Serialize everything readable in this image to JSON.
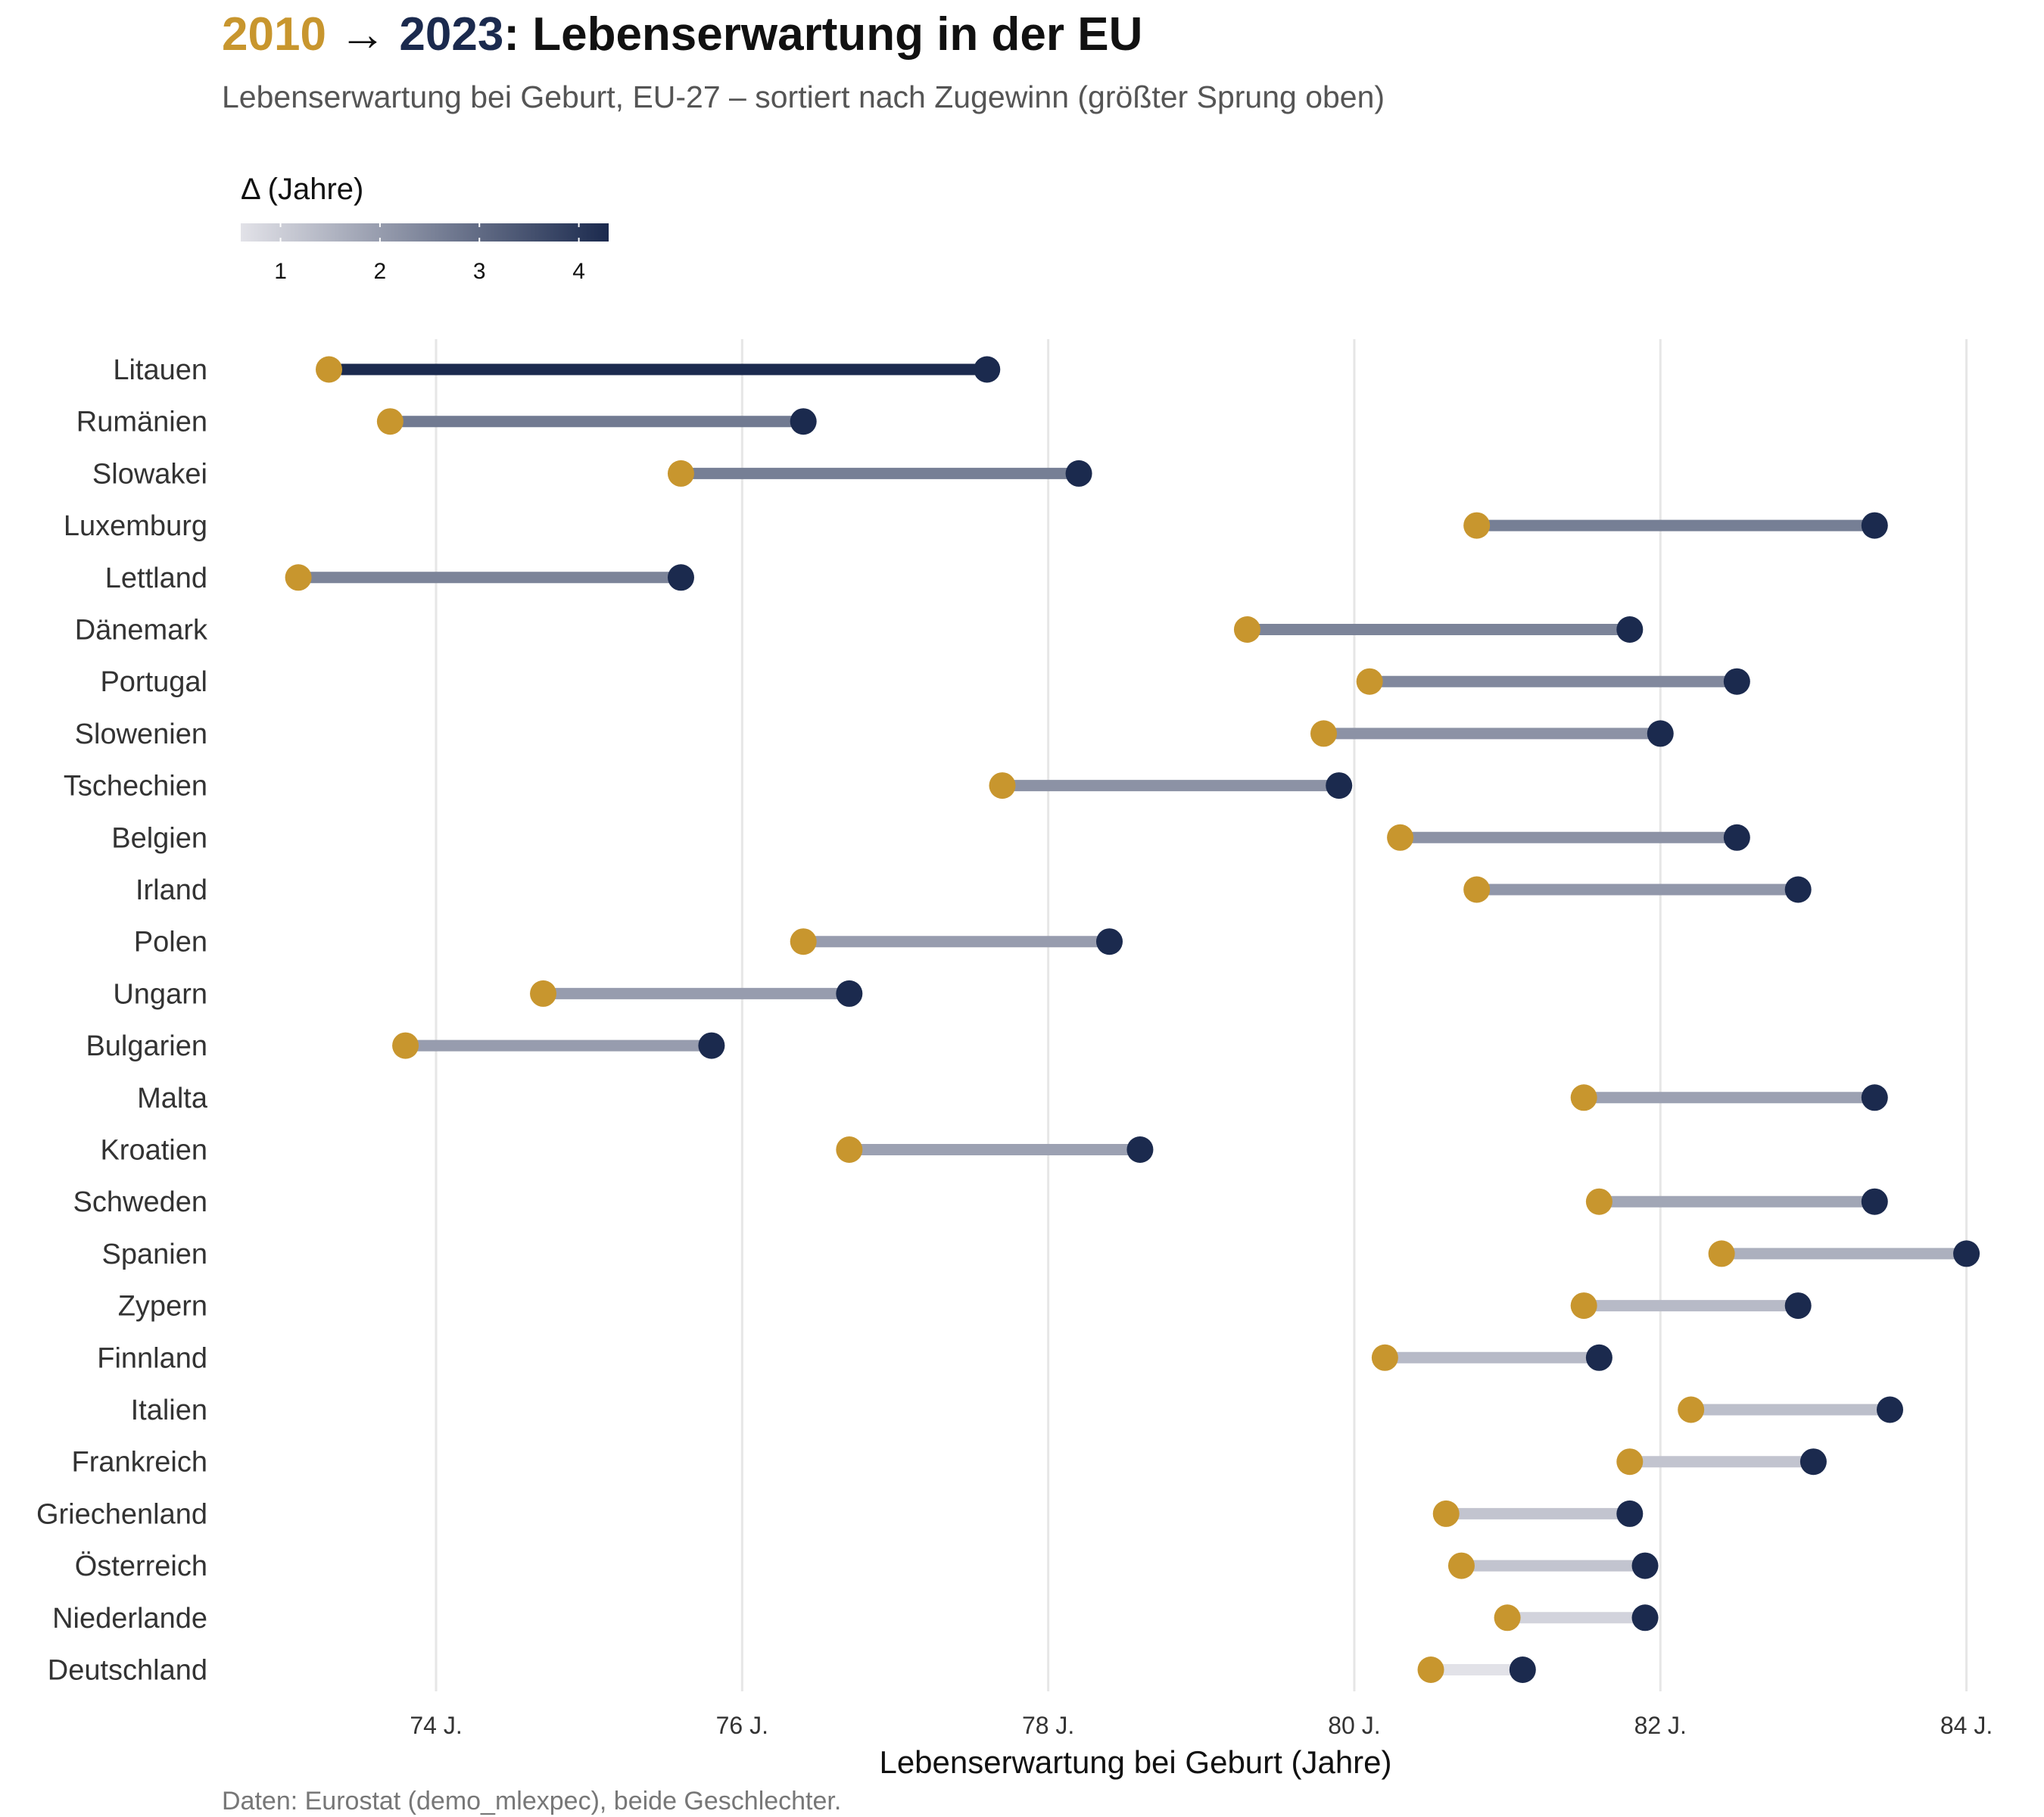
{
  "title": {
    "year_start": "2010",
    "arrow": "→",
    "year_end": "2023",
    "rest": ": Lebenserwartung in der EU"
  },
  "subtitle": "Lebenserwartung bei Geburt, EU-27 – sortiert nach Zugewinn (größter Sprung oben)",
  "legend": {
    "title": "Δ (Jahre)",
    "ticks": [
      "1",
      "2",
      "3",
      "4"
    ]
  },
  "caption": "Daten: Eurostat (demo_mlexpec), beide Geschlechter.",
  "colors": {
    "year_2010": "#C8962E",
    "year_2023": "#1B2A4E",
    "delta_low": "#E2E2E8",
    "delta_high": "#1B2A4E",
    "grid": "#E6E6E6"
  },
  "chart_data": {
    "type": "dumbbell",
    "xlabel": "Lebenserwartung bei Geburt (Jahre)",
    "xlim": [
      72.6,
      84.2
    ],
    "xticks": [
      74,
      76,
      78,
      80,
      82,
      84
    ],
    "xtick_labels": [
      "74 J.",
      "76 J.",
      "78 J.",
      "80 J.",
      "82 J.",
      "84 J."
    ],
    "delta_range": [
      0.6,
      4.3
    ],
    "grid": "vertical",
    "countries": [
      {
        "name": "Litauen",
        "v2010": 73.3,
        "v2023": 77.6
      },
      {
        "name": "Rumänien",
        "v2010": 73.7,
        "v2023": 76.4
      },
      {
        "name": "Slowakei",
        "v2010": 75.6,
        "v2023": 78.2
      },
      {
        "name": "Luxemburg",
        "v2010": 80.8,
        "v2023": 83.4
      },
      {
        "name": "Lettland",
        "v2010": 73.1,
        "v2023": 75.6
      },
      {
        "name": "Dänemark",
        "v2010": 79.3,
        "v2023": 81.8
      },
      {
        "name": "Portugal",
        "v2010": 80.1,
        "v2023": 82.5
      },
      {
        "name": "Slowenien",
        "v2010": 79.8,
        "v2023": 82.0
      },
      {
        "name": "Tschechien",
        "v2010": 77.7,
        "v2023": 79.9
      },
      {
        "name": "Belgien",
        "v2010": 80.3,
        "v2023": 82.5
      },
      {
        "name": "Irland",
        "v2010": 80.8,
        "v2023": 82.9
      },
      {
        "name": "Polen",
        "v2010": 76.4,
        "v2023": 78.4
      },
      {
        "name": "Ungarn",
        "v2010": 74.7,
        "v2023": 76.7
      },
      {
        "name": "Bulgarien",
        "v2010": 73.8,
        "v2023": 75.8
      },
      {
        "name": "Malta",
        "v2010": 81.5,
        "v2023": 83.4
      },
      {
        "name": "Kroatien",
        "v2010": 76.7,
        "v2023": 78.6
      },
      {
        "name": "Schweden",
        "v2010": 81.6,
        "v2023": 83.4
      },
      {
        "name": "Spanien",
        "v2010": 82.4,
        "v2023": 84.0
      },
      {
        "name": "Zypern",
        "v2010": 81.5,
        "v2023": 82.9
      },
      {
        "name": "Finnland",
        "v2010": 80.2,
        "v2023": 81.6
      },
      {
        "name": "Italien",
        "v2010": 82.2,
        "v2023": 83.5
      },
      {
        "name": "Frankreich",
        "v2010": 81.8,
        "v2023": 83.0
      },
      {
        "name": "Griechenland",
        "v2010": 80.6,
        "v2023": 81.8
      },
      {
        "name": "Österreich",
        "v2010": 80.7,
        "v2023": 81.9
      },
      {
        "name": "Niederlande",
        "v2010": 81.0,
        "v2023": 81.9
      },
      {
        "name": "Deutschland",
        "v2010": 80.5,
        "v2023": 81.1
      }
    ]
  }
}
